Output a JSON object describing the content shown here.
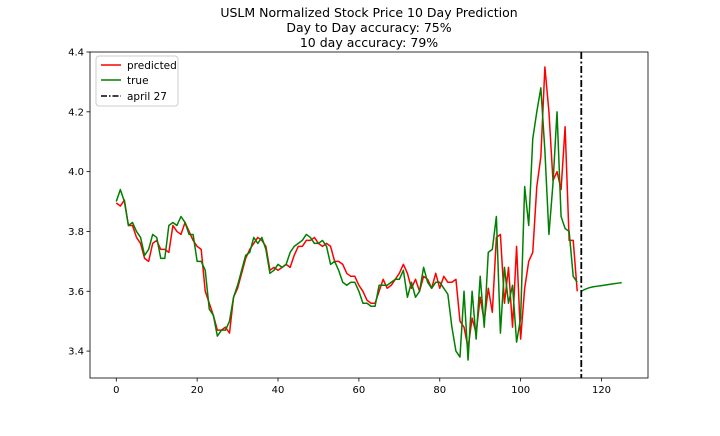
{
  "chart_data": {
    "type": "line",
    "title_lines": [
      "USLM Normalized Stock Price 10 Day Prediction",
      "Day to Day accuracy: 75%",
      "10 day accuracy: 79%"
    ],
    "xlim": [
      -6.5,
      131.5
    ],
    "ylim": [
      3.31,
      4.4
    ],
    "x_ticks": [
      0,
      20,
      40,
      60,
      80,
      100,
      120
    ],
    "y_ticks": [
      3.4,
      3.6,
      3.8,
      4.0,
      4.2,
      4.4
    ],
    "x_tick_labels": [
      "0",
      "20",
      "40",
      "60",
      "80",
      "100",
      "120"
    ],
    "y_tick_labels": [
      "3.4",
      "3.6",
      "3.8",
      "4.0",
      "4.2",
      "4.4"
    ],
    "grid": false,
    "legend_position": "top-left",
    "series": [
      {
        "name": "predicted",
        "color": "#ff0000",
        "x_start": 0,
        "values": [
          3.895,
          3.885,
          3.905,
          3.82,
          3.82,
          3.78,
          3.76,
          3.71,
          3.7,
          3.76,
          3.77,
          3.74,
          3.74,
          3.73,
          3.82,
          3.8,
          3.79,
          3.83,
          3.8,
          3.77,
          3.75,
          3.74,
          3.6,
          3.56,
          3.52,
          3.47,
          3.47,
          3.48,
          3.46,
          3.58,
          3.61,
          3.66,
          3.71,
          3.74,
          3.76,
          3.78,
          3.77,
          3.75,
          3.67,
          3.68,
          3.67,
          3.68,
          3.69,
          3.68,
          3.72,
          3.75,
          3.75,
          3.77,
          3.77,
          3.78,
          3.76,
          3.75,
          3.76,
          3.75,
          3.7,
          3.7,
          3.69,
          3.66,
          3.65,
          3.65,
          3.62,
          3.6,
          3.57,
          3.56,
          3.56,
          3.6,
          3.64,
          3.61,
          3.62,
          3.64,
          3.66,
          3.69,
          3.66,
          3.61,
          3.64,
          3.6,
          3.65,
          3.64,
          3.61,
          3.66,
          3.61,
          3.65,
          3.63,
          3.63,
          3.64,
          3.5,
          3.48,
          3.41,
          3.51,
          3.46,
          3.58,
          3.5,
          3.61,
          3.53,
          3.78,
          3.79,
          3.56,
          3.68,
          3.48,
          3.75,
          3.44,
          3.61,
          3.7,
          3.73,
          3.95,
          4.05,
          4.35,
          4.2,
          3.97,
          4.0,
          3.94,
          4.15,
          3.77,
          3.77,
          3.6
        ],
        "label_note": ""
      },
      {
        "name": "true",
        "color": "#008000",
        "x_start": 0,
        "values": [
          3.9,
          3.94,
          3.9,
          3.82,
          3.83,
          3.8,
          3.78,
          3.72,
          3.74,
          3.79,
          3.78,
          3.71,
          3.71,
          3.82,
          3.83,
          3.82,
          3.85,
          3.83,
          3.79,
          3.79,
          3.7,
          3.7,
          3.67,
          3.54,
          3.52,
          3.45,
          3.47,
          3.47,
          3.5,
          3.58,
          3.62,
          3.67,
          3.72,
          3.73,
          3.78,
          3.76,
          3.78,
          3.74,
          3.66,
          3.67,
          3.69,
          3.68,
          3.69,
          3.73,
          3.75,
          3.76,
          3.77,
          3.79,
          3.78,
          3.76,
          3.76,
          3.77,
          3.75,
          3.69,
          3.7,
          3.67,
          3.63,
          3.62,
          3.63,
          3.63,
          3.6,
          3.56,
          3.56,
          3.55,
          3.55,
          3.62,
          3.62,
          3.62,
          3.63,
          3.64,
          3.64,
          3.67,
          3.58,
          3.63,
          3.58,
          3.6,
          3.68,
          3.63,
          3.61,
          3.63,
          3.63,
          3.61,
          3.59,
          3.48,
          3.4,
          3.38,
          3.6,
          3.37,
          3.6,
          3.44,
          3.65,
          3.48,
          3.73,
          3.74,
          3.85,
          3.46,
          3.68,
          3.56,
          3.62,
          3.43,
          3.51,
          3.95,
          3.82,
          4.11,
          4.2,
          4.28,
          4.07,
          3.79,
          3.96,
          4.2,
          3.85,
          3.81,
          3.8,
          3.65,
          3.63
        ],
        "label_note": ""
      },
      {
        "name": "",
        "color": "#008000",
        "x": [
          115,
          116,
          117,
          118,
          119,
          120,
          121,
          122,
          123,
          124,
          125
        ],
        "values": [
          3.6,
          3.607,
          3.612,
          3.615,
          3.617,
          3.619,
          3.621,
          3.623,
          3.625,
          3.627,
          3.629
        ]
      }
    ],
    "vertical_line": {
      "name": "april 27",
      "x": 115,
      "color": "#000000",
      "style": "dash-dot"
    },
    "legend_entries": [
      "predicted",
      "true",
      "april 27"
    ]
  }
}
